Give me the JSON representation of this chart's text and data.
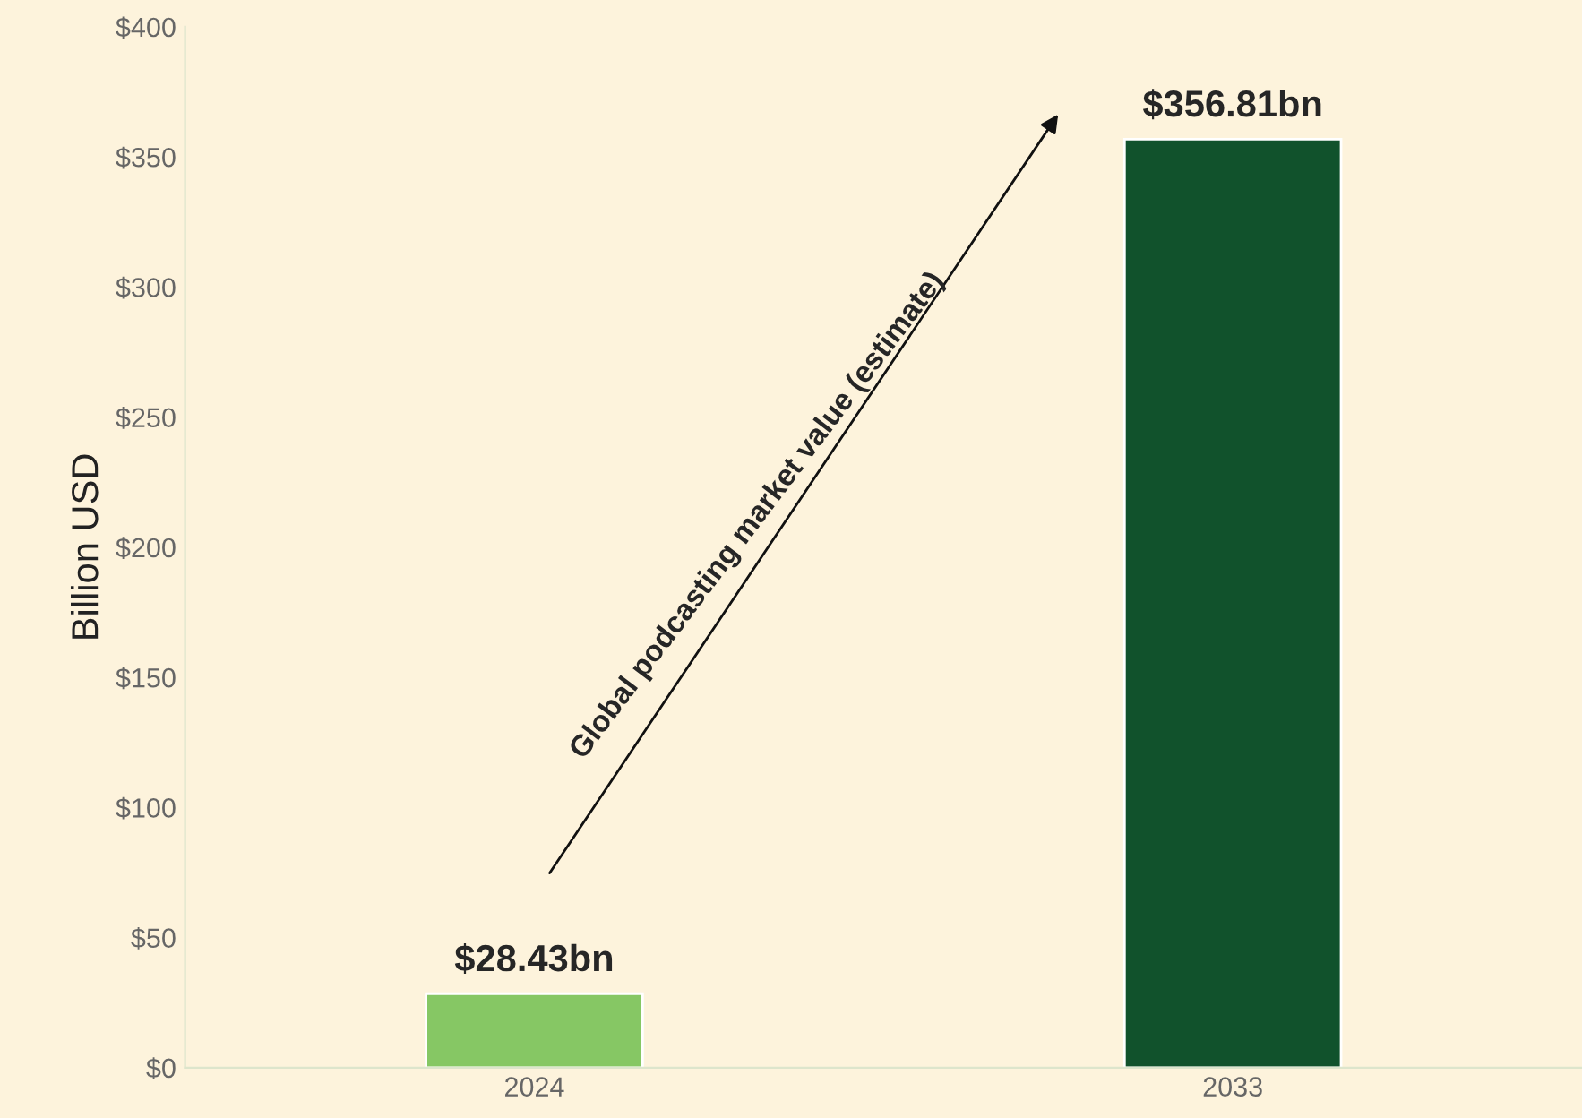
{
  "chart_data": {
    "type": "bar",
    "ylabel": "Billion USD",
    "categories": [
      "2024",
      "2033"
    ],
    "values": [
      28.43,
      356.81
    ],
    "colors": [
      "#86c764",
      "#11522c"
    ],
    "value_labels": [
      "$28.43bn",
      "$356.81bn"
    ],
    "ylim": [
      0,
      400
    ],
    "yticks": [
      {
        "value": 0,
        "label": "$0"
      },
      {
        "value": 50,
        "label": "$50"
      },
      {
        "value": 100,
        "label": "$100"
      },
      {
        "value": 150,
        "label": "$150"
      },
      {
        "value": 200,
        "label": "$200"
      },
      {
        "value": 250,
        "label": "$250"
      },
      {
        "value": 300,
        "label": "$300"
      },
      {
        "value": 350,
        "label": "$350"
      },
      {
        "value": 400,
        "label": "$400"
      }
    ],
    "annotations": [
      "Global podcasting market value (estimate)"
    ],
    "grid": false,
    "legend": false
  }
}
